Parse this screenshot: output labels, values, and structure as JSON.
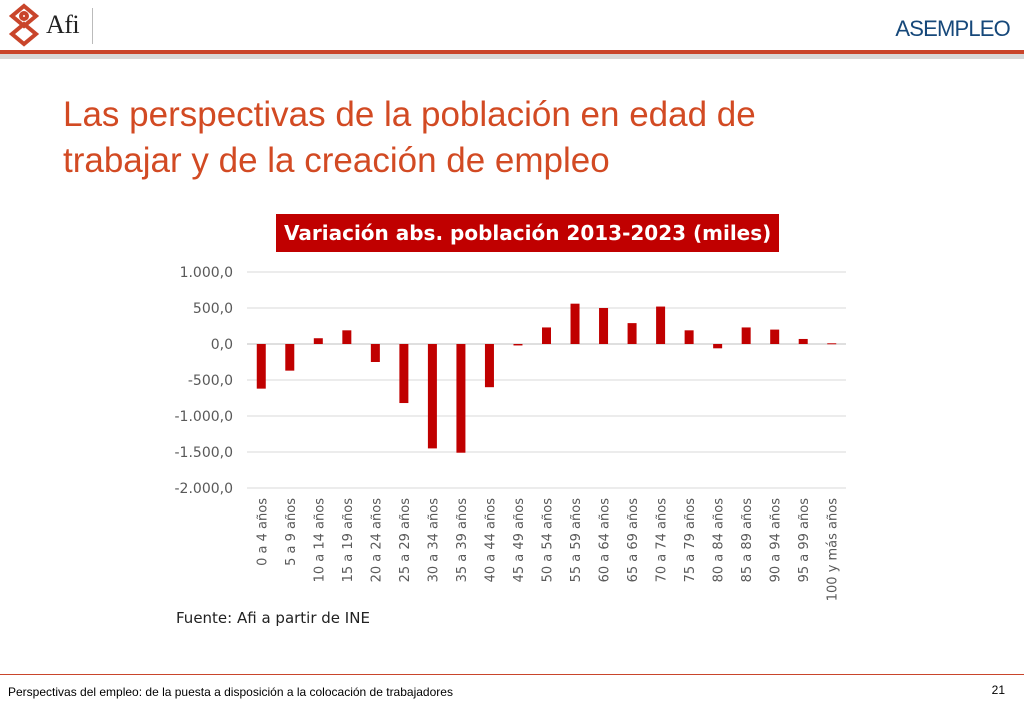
{
  "header": {
    "left_logo_text": "Afi",
    "right_logo_text": "ASEMPLEO",
    "accent_color": "#c9452b",
    "logo_icon": "afi-knot-logo-icon"
  },
  "slide": {
    "title_line1": "Las perspectivas de la población en edad de",
    "title_line2": "trabajar y de la creación de empleo"
  },
  "chart_data": {
    "type": "bar",
    "title": "Variación abs. población 2013-2023 (miles)",
    "categories": [
      "0 a 4 años",
      "5 a 9 años",
      "10 a 14 años",
      "15 a 19 años",
      "20 a 24 años",
      "25 a 29 años",
      "30 a 34 años",
      "35 a 39 años",
      "40 a 44 años",
      "45 a 49 años",
      "50 a 54 años",
      "55 a 59 años",
      "60 a 64 años",
      "65 a 69 años",
      "70 a 74 años",
      "75 a 79 años",
      "80 a 84 años",
      "85 a 89 años",
      "90 a 94 años",
      "95 a 99 años",
      "100 y más años"
    ],
    "values": [
      -620,
      -370,
      80,
      190,
      -250,
      -820,
      -1450,
      -1510,
      -600,
      -20,
      230,
      560,
      500,
      290,
      520,
      190,
      -60,
      230,
      200,
      70,
      10
    ],
    "yticks": [
      "1.000,0",
      "500,0",
      "0,0",
      "-500,0",
      "-1.000,0",
      "-1.500,0",
      "-2.000,0"
    ],
    "ylim": [
      -2000,
      1000
    ],
    "grid": true,
    "bar_color": "#c00000",
    "source": "Fuente: Afi a partir de INE"
  },
  "footer": {
    "text": "Perspectivas del empleo: de la puesta a disposición a la colocación de trabajadores",
    "page_number": "21"
  }
}
